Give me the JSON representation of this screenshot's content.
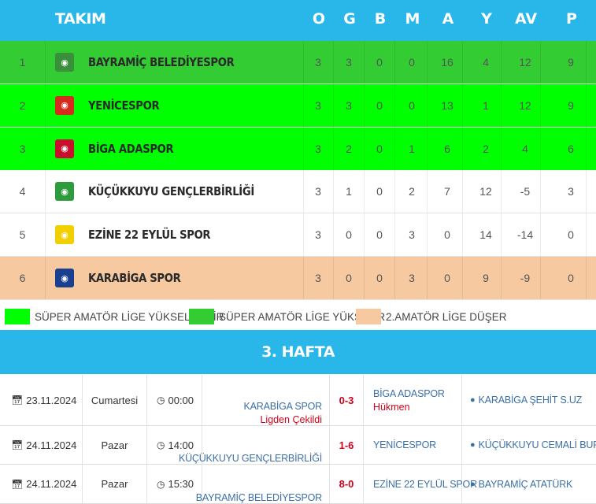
{
  "standings": {
    "headers": {
      "team": "TAKIM",
      "o": "O",
      "g": "G",
      "b": "B",
      "m": "M",
      "a": "A",
      "y": "Y",
      "av": "AV",
      "p": "P"
    },
    "rows": [
      {
        "rank": "1",
        "team": "BAYRAMİÇ BELEDİYESPOR",
        "o": "3",
        "g": "3",
        "b": "0",
        "m": "0",
        "a": "16",
        "y": "4",
        "av": "12",
        "p": "9",
        "bg": "#33cc33",
        "logo_icon": "bayramic-crest-icon",
        "logo_color": "#3a8f3a"
      },
      {
        "rank": "2",
        "team": "YENİCESPOR",
        "o": "3",
        "g": "3",
        "b": "0",
        "m": "0",
        "a": "13",
        "y": "1",
        "av": "12",
        "p": "9",
        "bg": "#00ff00",
        "logo_icon": "yenicespor-crest-icon",
        "logo_color": "#d62a1e"
      },
      {
        "rank": "3",
        "team": "BİGA ADASPOR",
        "o": "3",
        "g": "2",
        "b": "0",
        "m": "1",
        "a": "6",
        "y": "2",
        "av": "4",
        "p": "6",
        "bg": "#00ff00",
        "logo_icon": "biga-adaspor-crest-icon",
        "logo_color": "#c8102e"
      },
      {
        "rank": "4",
        "team": "KÜÇÜKKUYU GENÇLERBİRLİĞİ",
        "o": "3",
        "g": "1",
        "b": "0",
        "m": "2",
        "a": "7",
        "y": "12",
        "av": "-5",
        "p": "3",
        "bg": "#ffffff",
        "logo_icon": "kucukkuyu-crest-icon",
        "logo_color": "#2e9c3c"
      },
      {
        "rank": "5",
        "team": "EZİNE 22 EYLÜL SPOR",
        "o": "3",
        "g": "0",
        "b": "0",
        "m": "3",
        "a": "0",
        "y": "14",
        "av": "-14",
        "p": "0",
        "bg": "#ffffff",
        "logo_icon": "ezine-crest-icon",
        "logo_color": "#f2d000"
      },
      {
        "rank": "6",
        "team": "KARABİGA SPOR",
        "o": "3",
        "g": "0",
        "b": "0",
        "m": "3",
        "a": "0",
        "y": "9",
        "av": "-9",
        "p": "0",
        "bg": "#f7c9a0",
        "logo_icon": "karabiga-crest-icon",
        "logo_color": "#1a3f8f"
      }
    ]
  },
  "legend": [
    {
      "label": "SÜPER AMATÖR LİGE YÜKSELEBİLİR",
      "color": "#00ff00"
    },
    {
      "label": "SÜPER AMATÖR LİGE YÜKSELİR",
      "color": "#33cc33"
    },
    {
      "label": "2.AMATÖR LİGE DÜŞER",
      "color": "#f7c9a0"
    }
  ],
  "week_title": "3. HAFTA",
  "fixtures": [
    {
      "date": "23.11.2024",
      "day": "Cumartesi",
      "time": "00:00",
      "home": "KARABİGA SPOR",
      "home_note": "Ligden Çekildi",
      "score": "0-3",
      "away": "BİGA ADASPOR",
      "away_note": "Hükmen",
      "venue": "KARABİGA ŞEHİT S.UZ"
    },
    {
      "date": "24.11.2024",
      "day": "Pazar",
      "time": "14:00",
      "home": "KÜÇÜKKUYU GENÇLERBİRLİĞİ",
      "home_note": "",
      "score": "1-6",
      "away": "YENİCESPOR",
      "away_note": "",
      "venue": "KÜÇÜKKUYU CEMALİ BURNAZ"
    },
    {
      "date": "24.11.2024",
      "day": "Pazar",
      "time": "15:30",
      "home": "BAYRAMİÇ BELEDİYESPOR",
      "home_note": "",
      "score": "8-0",
      "away": "EZİNE 22 EYLÜL SPOR",
      "away_note": "",
      "venue": "BAYRAMİÇ ATATÜRK"
    }
  ],
  "icons": {
    "calendar": "calendar-icon",
    "clock": "clock-icon",
    "map_marker": "map-marker-icon"
  },
  "colors": {
    "header_blue": "#29b6e8",
    "score_red": "#d0021b",
    "link_blue": "#3c6fa5"
  }
}
